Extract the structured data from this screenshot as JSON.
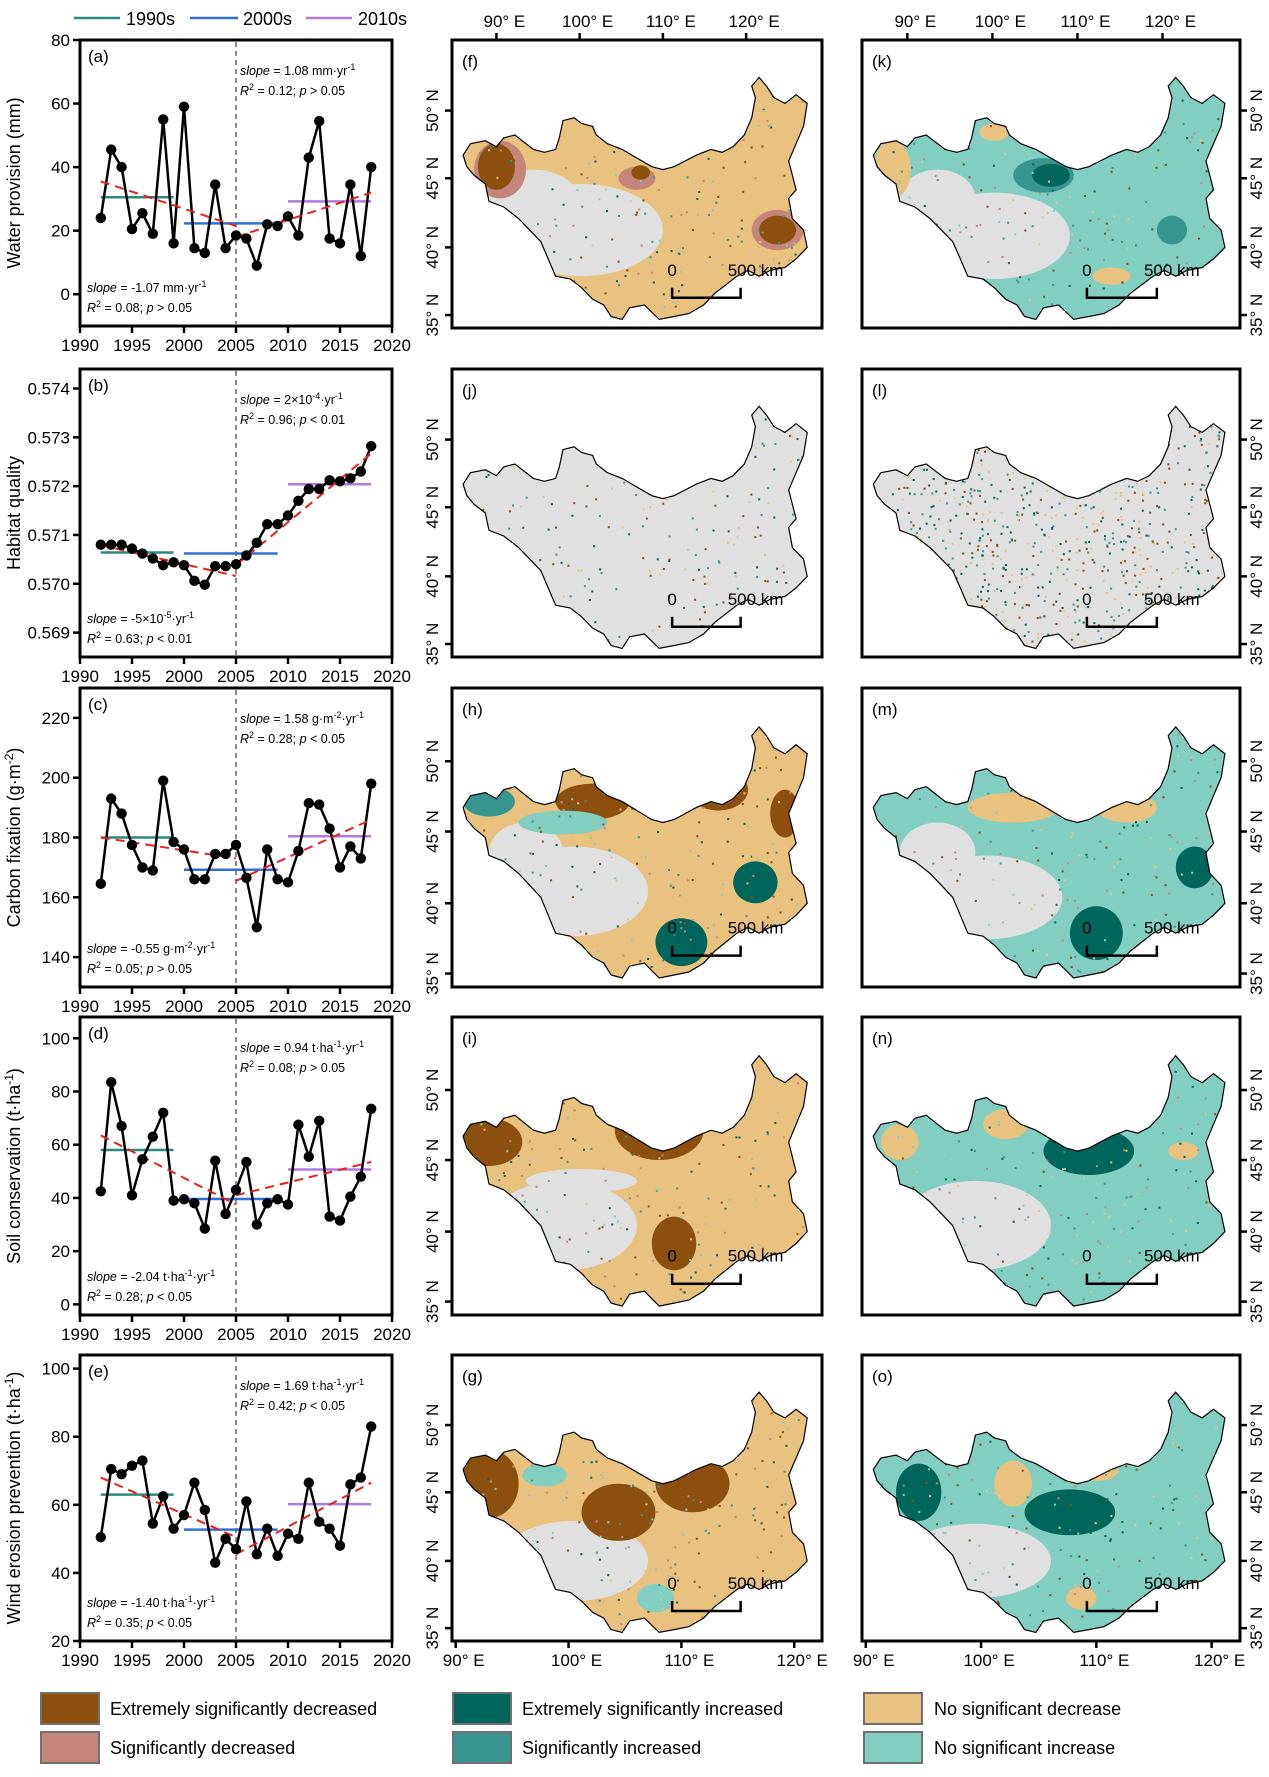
{
  "decade_legend": [
    {
      "label": "1990s",
      "color": "#2a8a7e"
    },
    {
      "label": "2000s",
      "color": "#2f6fd6"
    },
    {
      "label": "2010s",
      "color": "#b07ae0"
    }
  ],
  "chart_data": [
    {
      "type": "line",
      "panel": "(a)",
      "ylabel": "Water provision (mm)",
      "xlabel": "",
      "xlim": [
        1990,
        2020
      ],
      "ylim": [
        -10,
        80
      ],
      "xticks": [
        1990,
        1995,
        2000,
        2005,
        2010,
        2015,
        2020
      ],
      "yticks": [
        0,
        20,
        40,
        60,
        80
      ],
      "x": [
        1992,
        1993,
        1994,
        1995,
        1996,
        1997,
        1998,
        1999,
        2000,
        2001,
        2002,
        2003,
        2004,
        2005,
        2006,
        2007,
        2008,
        2009,
        2010,
        2011,
        2012,
        2013,
        2014,
        2015,
        2016,
        2017,
        2018
      ],
      "values": [
        24,
        45.5,
        40,
        20.5,
        25.5,
        19,
        55,
        16,
        59,
        14.5,
        13,
        34.5,
        14.5,
        18.5,
        17.5,
        9,
        22,
        21.5,
        24.5,
        18.5,
        43,
        54.5,
        17.5,
        16,
        34.5,
        12,
        40
      ],
      "decade_means": [
        {
          "decade": "1990s",
          "from": 1992,
          "to": 1999,
          "value": 30.5
        },
        {
          "decade": "2000s",
          "from": 2000,
          "to": 2009,
          "value": 22.3
        },
        {
          "decade": "2010s",
          "from": 2010,
          "to": 2018,
          "value": 29.2
        }
      ],
      "trend_lines": [
        {
          "from": 1992,
          "to": 2005,
          "y_start": 35.5,
          "y_end": 21.5
        },
        {
          "from": 2005,
          "to": 2018,
          "y_start": 18,
          "y_end": 32
        }
      ],
      "breakpoint": 2005,
      "stats_before": {
        "slope_word": "slope",
        "slope_value": " = -1.07 mm·yr",
        "slope_sup": "-1",
        "r2_word": "R",
        "r2_sup": "2",
        "r2_rest": " = 0.08; ",
        "p_word": "p",
        "p_rest": " > 0.05"
      },
      "stats_after": {
        "slope_word": "slope",
        "slope_value": " = 1.08 mm·yr",
        "slope_sup": "-1",
        "r2_word": "R",
        "r2_sup": "2",
        "r2_rest": " = 0.12; ",
        "p_word": "p",
        "p_rest": " > 0.05"
      }
    },
    {
      "type": "line",
      "panel": "(b)",
      "ylabel": "Habitat quality",
      "xlabel": "",
      "xlim": [
        1990,
        2020
      ],
      "ylim": [
        0.5685,
        0.5744
      ],
      "xticks": [
        1990,
        1995,
        2000,
        2005,
        2010,
        2015,
        2020
      ],
      "yticks": [
        0.569,
        0.57,
        0.571,
        0.572,
        0.573,
        0.574
      ],
      "ytick_labels": [
        "0.569",
        "0.570",
        "0.571",
        "0.572",
        "0.573",
        "0.574"
      ],
      "x": [
        1992,
        1993,
        1994,
        1995,
        1996,
        1997,
        1998,
        1999,
        2000,
        2001,
        2002,
        2003,
        2004,
        2005,
        2006,
        2007,
        2008,
        2009,
        2010,
        2011,
        2012,
        2013,
        2014,
        2015,
        2016,
        2017,
        2018
      ],
      "values": [
        0.5708,
        0.5708,
        0.5708,
        0.57072,
        0.57062,
        0.57052,
        0.57038,
        0.57044,
        0.57038,
        0.57006,
        0.56998,
        0.57036,
        0.57036,
        0.5704,
        0.57058,
        0.57084,
        0.57122,
        0.57122,
        0.5714,
        0.5717,
        0.57194,
        0.57194,
        0.57212,
        0.5721,
        0.57216,
        0.5723,
        0.57282
      ],
      "decade_means": [
        {
          "decade": "1990s",
          "from": 1992,
          "to": 1999,
          "value": 0.57064
        },
        {
          "decade": "2000s",
          "from": 2000,
          "to": 2009,
          "value": 0.57062
        },
        {
          "decade": "2010s",
          "from": 2010,
          "to": 2018,
          "value": 0.57204
        }
      ],
      "trend_lines": [
        {
          "from": 1992,
          "to": 2005,
          "y_start": 0.57079,
          "y_end": 0.57016
        },
        {
          "from": 2005,
          "to": 2018,
          "y_start": 0.57038,
          "y_end": 0.57267
        }
      ],
      "breakpoint": 2005,
      "stats_before": {
        "slope_word": "slope",
        "slope_value": " = -5×10",
        "slope_exp": "-5",
        "slope_unit": "·yr",
        "slope_sup": "-1",
        "r2_word": "R",
        "r2_sup": "2",
        "r2_rest": " = 0.63; ",
        "p_word": "p",
        "p_rest": " < 0.01"
      },
      "stats_after": {
        "slope_word": "slope",
        "slope_value": " = 2×10",
        "slope_exp": "-4",
        "slope_unit": "·yr",
        "slope_sup": "-1",
        "r2_word": "R",
        "r2_sup": "2",
        "r2_rest": " = 0.96; ",
        "p_word": "p",
        "p_rest": " < 0.01"
      }
    },
    {
      "type": "line",
      "panel": "(c)",
      "ylabel": "Carbon fixation (g·m",
      "ylabel_sup": "-2",
      "ylabel_tail": ")",
      "xlabel": "",
      "xlim": [
        1990,
        2020
      ],
      "ylim": [
        130,
        230
      ],
      "xticks": [
        1990,
        1995,
        2000,
        2005,
        2010,
        2015,
        2020
      ],
      "yticks": [
        140,
        160,
        180,
        200,
        220
      ],
      "x": [
        1992,
        1993,
        1994,
        1995,
        1996,
        1997,
        1998,
        1999,
        2000,
        2001,
        2002,
        2003,
        2004,
        2005,
        2006,
        2007,
        2008,
        2009,
        2010,
        2011,
        2012,
        2013,
        2014,
        2015,
        2016,
        2017,
        2018
      ],
      "values": [
        164.5,
        193,
        188,
        177.5,
        170,
        169,
        199,
        178.5,
        176,
        166,
        166,
        174.5,
        174.5,
        177.5,
        166.5,
        150,
        176,
        166,
        165,
        175.5,
        191.5,
        191,
        183,
        170,
        177,
        173,
        198
      ],
      "decade_means": [
        {
          "decade": "1990s",
          "from": 1992,
          "to": 1999,
          "value": 180
        },
        {
          "decade": "2000s",
          "from": 2000,
          "to": 2009,
          "value": 169.2
        },
        {
          "decade": "2010s",
          "from": 2010,
          "to": 2018,
          "value": 180.4
        }
      ],
      "trend_lines": [
        {
          "from": 1992,
          "to": 2005,
          "y_start": 180,
          "y_end": 173
        },
        {
          "from": 2005,
          "to": 2018,
          "y_start": 165.5,
          "y_end": 186
        }
      ],
      "breakpoint": 2005,
      "stats_before": {
        "slope_word": "slope",
        "slope_value": " = -0.55 g·m",
        "slope_exp": "-2",
        "slope_unit": "·yr",
        "slope_sup": "-1",
        "r2_word": "R",
        "r2_sup": "2",
        "r2_rest": " = 0.05; ",
        "p_word": "p",
        "p_rest": " > 0.05"
      },
      "stats_after": {
        "slope_word": "slope",
        "slope_value": " = 1.58 g·m",
        "slope_exp": "-2",
        "slope_unit": "·yr",
        "slope_sup": "-1",
        "r2_word": "R",
        "r2_sup": "2",
        "r2_rest": " = 0.28; ",
        "p_word": "p",
        "p_rest": " < 0.05"
      }
    },
    {
      "type": "line",
      "panel": "(d)",
      "ylabel": "Soil conservation (t·ha",
      "ylabel_sup": "-1",
      "ylabel_tail": ")",
      "xlabel": "",
      "xlim": [
        1990,
        2020
      ],
      "ylim": [
        -4,
        108
      ],
      "xticks": [
        1990,
        1995,
        2000,
        2005,
        2010,
        2015,
        2020
      ],
      "yticks": [
        0,
        20,
        40,
        60,
        80,
        100
      ],
      "x": [
        1992,
        1993,
        1994,
        1995,
        1996,
        1997,
        1998,
        1999,
        2000,
        2001,
        2002,
        2003,
        2004,
        2005,
        2006,
        2007,
        2008,
        2009,
        2010,
        2011,
        2012,
        2013,
        2014,
        2015,
        2016,
        2017,
        2018
      ],
      "values": [
        42.5,
        83.5,
        67,
        41,
        54.5,
        63,
        72,
        39,
        39.5,
        38,
        28.5,
        54,
        34,
        43,
        53.5,
        30,
        38,
        39.5,
        37.5,
        67.5,
        55.5,
        69,
        33,
        31.5,
        40.5,
        48,
        73.5
      ],
      "decade_means": [
        {
          "decade": "1990s",
          "from": 1992,
          "to": 1999,
          "value": 58
        },
        {
          "decade": "2000s",
          "from": 2000,
          "to": 2009,
          "value": 39.6
        },
        {
          "decade": "2010s",
          "from": 2010,
          "to": 2018,
          "value": 50.7
        }
      ],
      "trend_lines": [
        {
          "from": 1992,
          "to": 2005,
          "y_start": 63.5,
          "y_end": 37.5
        },
        {
          "from": 2005,
          "to": 2018,
          "y_start": 41,
          "y_end": 53.5
        }
      ],
      "breakpoint": 2005,
      "stats_before": {
        "slope_word": "slope",
        "slope_value": " = -2.04 t·ha",
        "slope_exp": "-1",
        "slope_unit": "·yr",
        "slope_sup": "-1",
        "r2_word": "R",
        "r2_sup": "2",
        "r2_rest": " = 0.28; ",
        "p_word": "p",
        "p_rest": " < 0.05"
      },
      "stats_after": {
        "slope_word": "slope",
        "slope_value": " = 0.94 t·ha",
        "slope_exp": "-1",
        "slope_unit": "·yr",
        "slope_sup": "-1",
        "r2_word": "R",
        "r2_sup": "2",
        "r2_rest": " = 0.08; ",
        "p_word": "p",
        "p_rest": " > 0.05"
      }
    },
    {
      "type": "line",
      "panel": "(e)",
      "ylabel": "Wind erosion prevention (t·ha",
      "ylabel_sup": "-1",
      "ylabel_tail": ")",
      "xlabel": "",
      "xlim": [
        1990,
        2020
      ],
      "ylim": [
        20,
        104
      ],
      "xticks": [
        1990,
        1995,
        2000,
        2005,
        2010,
        2015,
        2020
      ],
      "yticks": [
        20,
        40,
        60,
        80,
        100
      ],
      "x": [
        1992,
        1993,
        1994,
        1995,
        1996,
        1997,
        1998,
        1999,
        2000,
        2001,
        2002,
        2003,
        2004,
        2005,
        2006,
        2007,
        2008,
        2009,
        2010,
        2011,
        2012,
        2013,
        2014,
        2015,
        2016,
        2017,
        2018
      ],
      "values": [
        50.5,
        70.5,
        69,
        71.5,
        73,
        54.5,
        62.5,
        53,
        57,
        66.5,
        58.5,
        43,
        50,
        47,
        61,
        45.5,
        53,
        45,
        51.5,
        50,
        66.5,
        55,
        53,
        48,
        66,
        68,
        83
      ],
      "decade_means": [
        {
          "decade": "1990s",
          "from": 1992,
          "to": 1999,
          "value": 63
        },
        {
          "decade": "2000s",
          "from": 2000,
          "to": 2009,
          "value": 52.7
        },
        {
          "decade": "2010s",
          "from": 2010,
          "to": 2018,
          "value": 60.2
        }
      ],
      "trend_lines": [
        {
          "from": 1992,
          "to": 2005,
          "y_start": 68,
          "y_end": 50.5
        },
        {
          "from": 2005,
          "to": 2018,
          "y_start": 45.5,
          "y_end": 66.5
        }
      ],
      "breakpoint": 2005,
      "stats_before": {
        "slope_word": "slope",
        "slope_value": " = -1.40 t·ha",
        "slope_exp": "-1",
        "slope_unit": "·yr",
        "slope_sup": "-1",
        "r2_word": "R",
        "r2_sup": "2",
        "r2_rest": " = 0.35; ",
        "p_word": "p",
        "p_rest": " < 0.05"
      },
      "stats_after": {
        "slope_word": "slope",
        "slope_value": " = 1.69 t·ha",
        "slope_exp": "-1",
        "slope_unit": "·yr",
        "slope_sup": "-1",
        "r2_word": "R",
        "r2_sup": "2",
        "r2_rest": " = 0.42; ",
        "p_word": "p",
        "p_rest": " < 0.05"
      }
    }
  ],
  "maps": {
    "lon_ticks": [
      "90° E",
      "100° E",
      "110° E",
      "120° E"
    ],
    "lat_ticks": [
      "35° N",
      "40° N",
      "45° N",
      "50° N"
    ],
    "scale_bar": {
      "zero": "0",
      "label": "500 km"
    },
    "panels_left": [
      {
        "label": "(f)",
        "dominant": "no_sig_decrease"
      },
      {
        "label": "(j)",
        "dominant": "stable"
      },
      {
        "label": "(h)",
        "dominant": "no_sig_decrease"
      },
      {
        "label": "(i)",
        "dominant": "no_sig_decrease"
      },
      {
        "label": "(g)",
        "dominant": "no_sig_decrease"
      }
    ],
    "panels_right": [
      {
        "label": "(k)",
        "dominant": "no_sig_increase"
      },
      {
        "label": "(l)",
        "dominant": "stable"
      },
      {
        "label": "(m)",
        "dominant": "no_sig_increase"
      },
      {
        "label": "(n)",
        "dominant": "no_sig_increase"
      },
      {
        "label": "(o)",
        "dominant": "no_sig_increase"
      }
    ]
  },
  "map_legend": [
    {
      "label": "Extremely significantly decreased",
      "color": "#8b4f0e"
    },
    {
      "label": "Significantly decreased",
      "color": "#c4857a"
    },
    {
      "label": "Extremely significantly increased",
      "color": "#00665c"
    },
    {
      "label": "Significantly increased",
      "color": "#379690"
    },
    {
      "label": "No significant decrease",
      "color": "#e8c27e"
    },
    {
      "label": "No significant increase",
      "color": "#82cfc1"
    }
  ],
  "colors": {
    "stable_gray": "#e0e0e0",
    "trend_red": "#e8201e",
    "series_black": "#000000",
    "breakpoint_gray": "#8c8c8c"
  }
}
